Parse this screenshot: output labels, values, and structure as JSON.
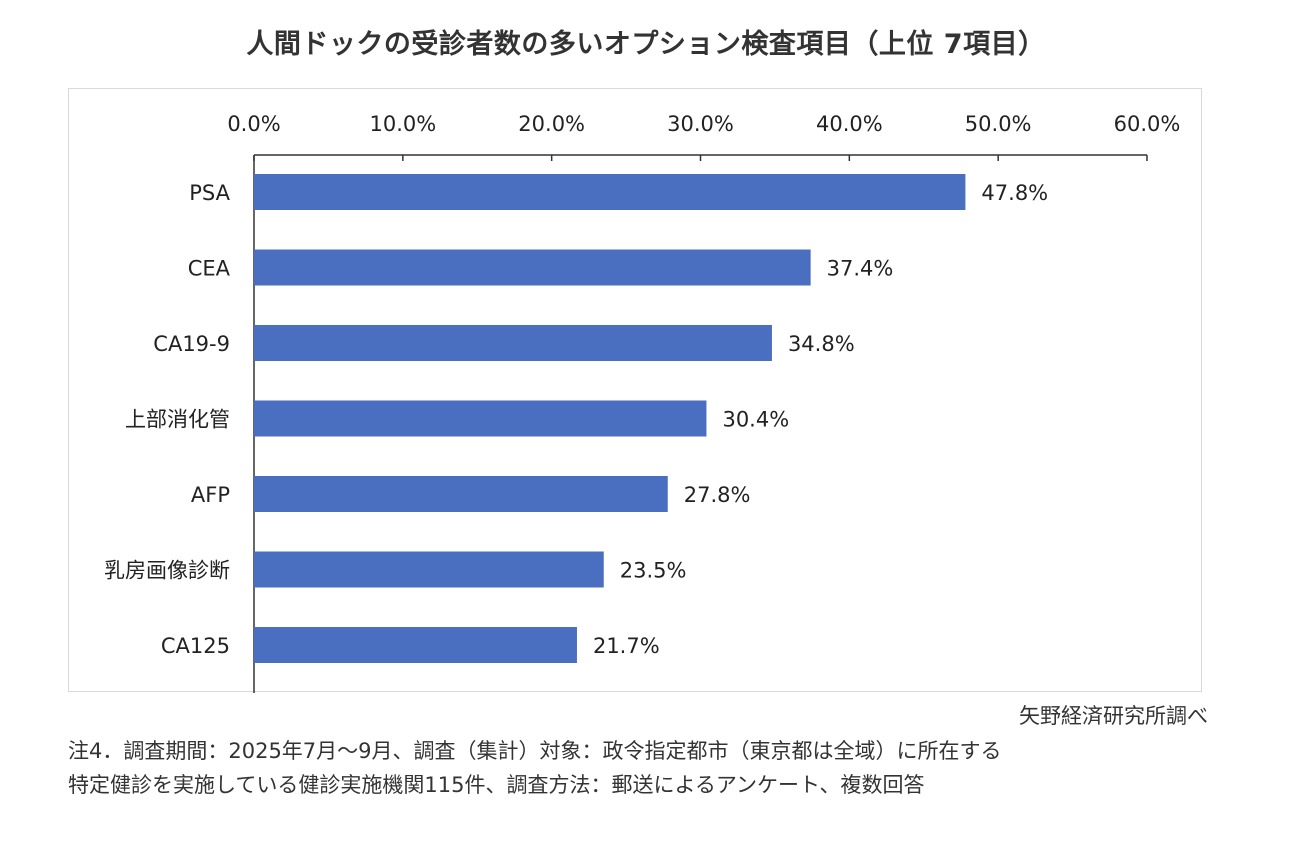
{
  "title": "人間ドックの受診者数の多いオプション検査項目（上位 7項目）",
  "source_credit": "矢野経済研究所調べ",
  "notes": [
    "注4．調査期間：2025年7月～9月、調査（集計）対象：政令指定都市（東京都は全域）に所在する",
    "特定健診を実施している健診実施機関115件、調査方法：郵送によるアンケート、複数回答"
  ],
  "colors": {
    "bar": "#4a6fc1",
    "axis": "#333333",
    "text": "#222222"
  },
  "chart_data": {
    "type": "bar",
    "orientation": "horizontal",
    "title": "人間ドックの受診者数の多いオプション検査項目（上位 7項目）",
    "categories": [
      "PSA",
      "CEA",
      "CA19-9",
      "上部消化管",
      "AFP",
      "乳房画像診断",
      "CA125"
    ],
    "values": [
      47.8,
      37.4,
      34.8,
      30.4,
      27.8,
      23.5,
      21.7
    ],
    "value_labels": [
      "47.8%",
      "37.4%",
      "34.8%",
      "30.4%",
      "27.8%",
      "23.5%",
      "21.7%"
    ],
    "ticks": [
      0,
      10,
      20,
      30,
      40,
      50,
      60
    ],
    "tick_labels": [
      "0.0%",
      "10.0%",
      "20.0%",
      "30.0%",
      "40.0%",
      "50.0%",
      "60.0%"
    ],
    "xlim": [
      0,
      60
    ],
    "axis_position": "top",
    "grid": false,
    "xlabel": "",
    "ylabel": ""
  }
}
